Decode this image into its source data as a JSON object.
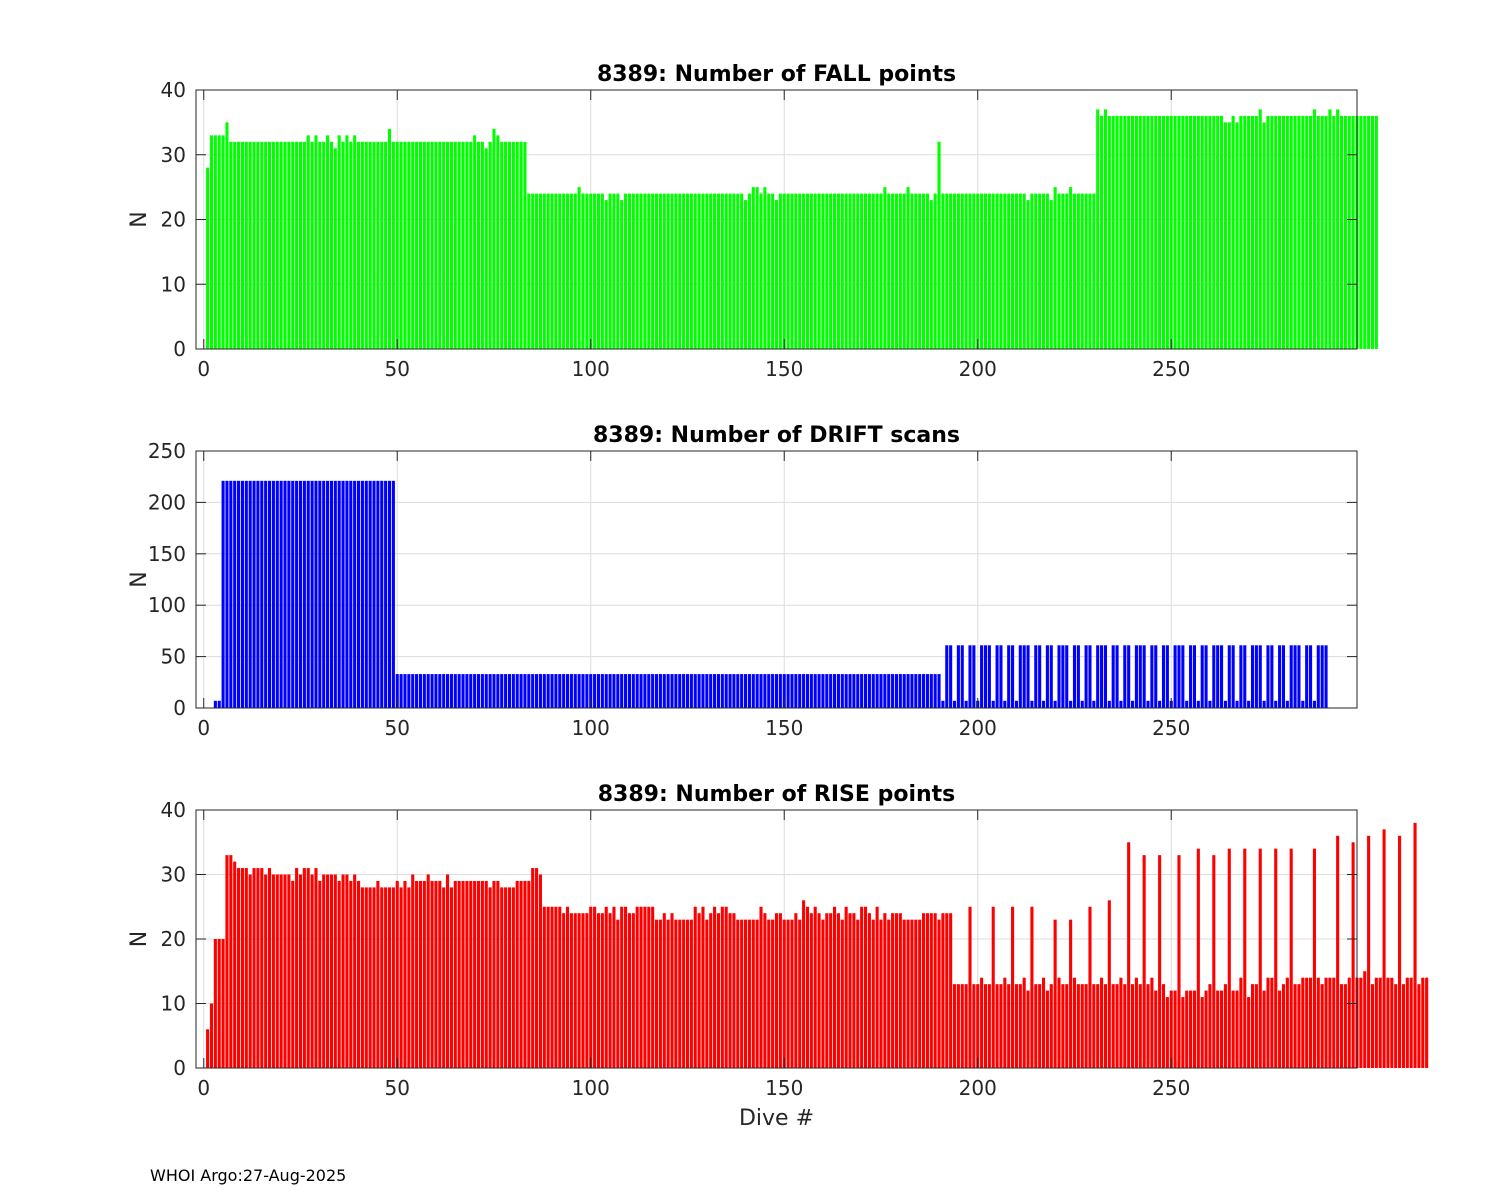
{
  "chart_data": [
    {
      "type": "bar",
      "title": "8389: Number of FALL points",
      "xlabel": "",
      "ylabel": "N",
      "xlim": [
        -2,
        298
      ],
      "ylim": [
        0,
        40
      ],
      "xticks": [
        0,
        50,
        100,
        150,
        200,
        250
      ],
      "yticks": [
        0,
        10,
        20,
        30,
        40
      ],
      "grid": true,
      "color": "#00ff00",
      "x_start": 1,
      "values": [
        28,
        33,
        33,
        33,
        33,
        35,
        32,
        32,
        32,
        32,
        32,
        32,
        32,
        32,
        32,
        32,
        32,
        32,
        32,
        32,
        32,
        32,
        32,
        32,
        32,
        32,
        33,
        32,
        33,
        32,
        32,
        33,
        32,
        31,
        33,
        32,
        33,
        32,
        33,
        32,
        32,
        32,
        32,
        32,
        32,
        32,
        32,
        34,
        32,
        32,
        32,
        32,
        32,
        32,
        32,
        32,
        32,
        32,
        32,
        32,
        32,
        32,
        32,
        32,
        32,
        32,
        32,
        32,
        32,
        33,
        32,
        32,
        31,
        32,
        34,
        33,
        32,
        32,
        32,
        32,
        32,
        32,
        32,
        24,
        24,
        24,
        24,
        24,
        24,
        24,
        24,
        24,
        24,
        24,
        24,
        24,
        25,
        24,
        24,
        24,
        24,
        24,
        24,
        23,
        24,
        24,
        24,
        23,
        24,
        24,
        24,
        24,
        24,
        24,
        24,
        24,
        24,
        24,
        24,
        24,
        24,
        24,
        24,
        24,
        24,
        24,
        24,
        24,
        24,
        24,
        24,
        24,
        24,
        24,
        24,
        24,
        24,
        24,
        24,
        23,
        24,
        25,
        25,
        24,
        25,
        24,
        24,
        23,
        24,
        24,
        24,
        24,
        24,
        24,
        24,
        24,
        24,
        24,
        24,
        24,
        24,
        24,
        24,
        24,
        24,
        24,
        24,
        24,
        24,
        24,
        24,
        24,
        24,
        24,
        24,
        25,
        24,
        24,
        24,
        24,
        24,
        25,
        24,
        24,
        24,
        24,
        24,
        23,
        24,
        32,
        24,
        24,
        24,
        24,
        24,
        24,
        24,
        24,
        24,
        24,
        24,
        24,
        24,
        24,
        24,
        24,
        24,
        24,
        24,
        24,
        24,
        24,
        23,
        24,
        24,
        24,
        24,
        24,
        23,
        25,
        24,
        24,
        24,
        25,
        24,
        24,
        24,
        24,
        24,
        24,
        37,
        36,
        37,
        36,
        36,
        36,
        36,
        36,
        36,
        36,
        36,
        36,
        36,
        36,
        36,
        36,
        36,
        36,
        36,
        36,
        36,
        36,
        36,
        36,
        36,
        36,
        36,
        36,
        36,
        36,
        36,
        36,
        36,
        35,
        35,
        36,
        35,
        36,
        36,
        36,
        36,
        36,
        37,
        35,
        36,
        36,
        36,
        36,
        36,
        36,
        36,
        36,
        36,
        36,
        36,
        36,
        37,
        36,
        36,
        36,
        37,
        36,
        37,
        36,
        36,
        36,
        36,
        36,
        36,
        36,
        36,
        36,
        36
      ]
    },
    {
      "type": "bar",
      "title": "8389: Number of DRIFT scans",
      "xlabel": "",
      "ylabel": "N",
      "xlim": [
        -2,
        298
      ],
      "ylim": [
        0,
        250
      ],
      "xticks": [
        0,
        50,
        100,
        150,
        200,
        250
      ],
      "yticks": [
        0,
        50,
        100,
        150,
        200,
        250
      ],
      "grid": true,
      "color": "#0000ff",
      "x_start": 1,
      "values": [
        0,
        0,
        7,
        7,
        221,
        221,
        221,
        221,
        221,
        221,
        221,
        221,
        221,
        221,
        221,
        221,
        221,
        221,
        221,
        221,
        221,
        221,
        221,
        221,
        221,
        221,
        221,
        221,
        221,
        221,
        221,
        221,
        221,
        221,
        221,
        221,
        221,
        221,
        221,
        221,
        221,
        221,
        221,
        221,
        221,
        221,
        221,
        221,
        221,
        33,
        33,
        33,
        33,
        33,
        33,
        33,
        33,
        33,
        33,
        33,
        33,
        33,
        33,
        33,
        33,
        33,
        33,
        33,
        33,
        33,
        33,
        33,
        33,
        33,
        33,
        33,
        33,
        33,
        33,
        33,
        33,
        33,
        33,
        33,
        33,
        33,
        33,
        33,
        33,
        33,
        33,
        33,
        33,
        33,
        33,
        33,
        33,
        33,
        33,
        33,
        33,
        33,
        33,
        33,
        33,
        33,
        33,
        33,
        33,
        33,
        33,
        33,
        33,
        33,
        33,
        33,
        33,
        33,
        33,
        33,
        33,
        33,
        33,
        33,
        33,
        33,
        33,
        33,
        33,
        33,
        33,
        33,
        33,
        33,
        33,
        33,
        33,
        33,
        33,
        33,
        33,
        33,
        33,
        33,
        33,
        33,
        33,
        33,
        33,
        33,
        33,
        33,
        33,
        33,
        33,
        33,
        33,
        33,
        33,
        33,
        33,
        33,
        33,
        33,
        33,
        33,
        33,
        33,
        33,
        33,
        33,
        33,
        33,
        33,
        33,
        33,
        33,
        33,
        33,
        33,
        33,
        33,
        33,
        33,
        33,
        33,
        33,
        33,
        33,
        33,
        7,
        61,
        61,
        7,
        61,
        61,
        7,
        61,
        61,
        7,
        61,
        61,
        61,
        7,
        61,
        61,
        7,
        61,
        61,
        7,
        61,
        61,
        61,
        7,
        61,
        61,
        7,
        61,
        61,
        7,
        61,
        61,
        61,
        7,
        61,
        61,
        7,
        61,
        61,
        7,
        61,
        61,
        61,
        7,
        61,
        61,
        7,
        61,
        61,
        7,
        61,
        61,
        61,
        7,
        61,
        61,
        7,
        61,
        61,
        7,
        61,
        61,
        61,
        7,
        61,
        61,
        7,
        61,
        61,
        7,
        61,
        61,
        61,
        7,
        61,
        61,
        7,
        61,
        61,
        7,
        61,
        61,
        61,
        7,
        61,
        61,
        7,
        61,
        61,
        7,
        61,
        61,
        61,
        7,
        61,
        61,
        7,
        61,
        61,
        61
      ]
    },
    {
      "type": "bar",
      "title": "8389: Number of RISE points",
      "xlabel": "Dive #",
      "ylabel": "N",
      "xlim": [
        -2,
        298
      ],
      "ylim": [
        0,
        40
      ],
      "xticks": [
        0,
        50,
        100,
        150,
        200,
        250
      ],
      "yticks": [
        0,
        10,
        20,
        30,
        40
      ],
      "grid": true,
      "color": "#ff0000",
      "x_start": 1,
      "values": [
        6,
        10,
        20,
        20,
        20,
        33,
        33,
        32,
        31,
        31,
        31,
        30,
        31,
        31,
        31,
        30,
        31,
        30,
        30,
        30,
        30,
        30,
        29,
        31,
        30,
        31,
        31,
        30,
        31,
        29,
        30,
        30,
        30,
        30,
        29,
        30,
        30,
        29,
        30,
        29,
        28,
        28,
        28,
        28,
        29,
        28,
        28,
        28,
        28,
        29,
        28,
        29,
        28,
        30,
        29,
        29,
        29,
        30,
        29,
        29,
        29,
        28,
        30,
        28,
        29,
        29,
        29,
        29,
        29,
        29,
        29,
        29,
        29,
        28,
        29,
        29,
        28,
        28,
        28,
        28,
        29,
        29,
        29,
        29,
        31,
        31,
        30,
        25,
        25,
        25,
        25,
        25,
        24,
        25,
        24,
        24,
        24,
        24,
        24,
        25,
        25,
        24,
        24,
        25,
        24,
        25,
        23,
        25,
        25,
        24,
        24,
        25,
        25,
        25,
        25,
        25,
        23,
        23,
        24,
        23,
        24,
        23,
        23,
        23,
        23,
        23,
        25,
        24,
        25,
        23,
        24,
        25,
        24,
        25,
        25,
        24,
        24,
        23,
        23,
        23,
        23,
        23,
        23,
        25,
        24,
        23,
        23,
        24,
        24,
        23,
        23,
        23,
        24,
        23,
        26,
        25,
        24,
        25,
        24,
        23,
        24,
        24,
        25,
        24,
        23,
        25,
        24,
        24,
        23,
        25,
        25,
        24,
        23,
        25,
        23,
        24,
        23,
        24,
        24,
        24,
        23,
        23,
        23,
        23,
        23,
        24,
        24,
        24,
        24,
        23,
        24,
        24,
        24,
        13,
        13,
        13,
        13,
        25,
        13,
        13,
        14,
        13,
        13,
        25,
        13,
        13,
        14,
        13,
        25,
        13,
        13,
        14,
        12,
        25,
        13,
        13,
        14,
        12,
        13,
        23,
        14,
        13,
        13,
        23,
        14,
        13,
        13,
        13,
        25,
        13,
        13,
        14,
        13,
        26,
        13,
        13,
        14,
        13,
        35,
        13,
        14,
        13,
        33,
        13,
        14,
        12,
        33,
        13,
        11,
        12,
        12,
        33,
        11,
        12,
        12,
        12,
        34,
        11,
        12,
        13,
        33,
        12,
        12,
        13,
        34,
        12,
        12,
        14,
        34,
        11,
        13,
        13,
        34,
        12,
        14,
        14,
        34,
        12,
        13,
        14,
        34,
        13,
        13,
        14,
        14,
        14,
        34,
        14,
        13,
        14,
        14,
        14,
        36,
        13,
        13,
        14,
        35,
        14,
        14,
        15,
        36,
        13,
        14,
        14,
        37,
        14,
        14,
        13,
        36,
        13,
        14,
        14,
        38,
        13,
        14,
        14
      ]
    }
  ],
  "footer": "WHOI Argo:27-Aug-2025"
}
